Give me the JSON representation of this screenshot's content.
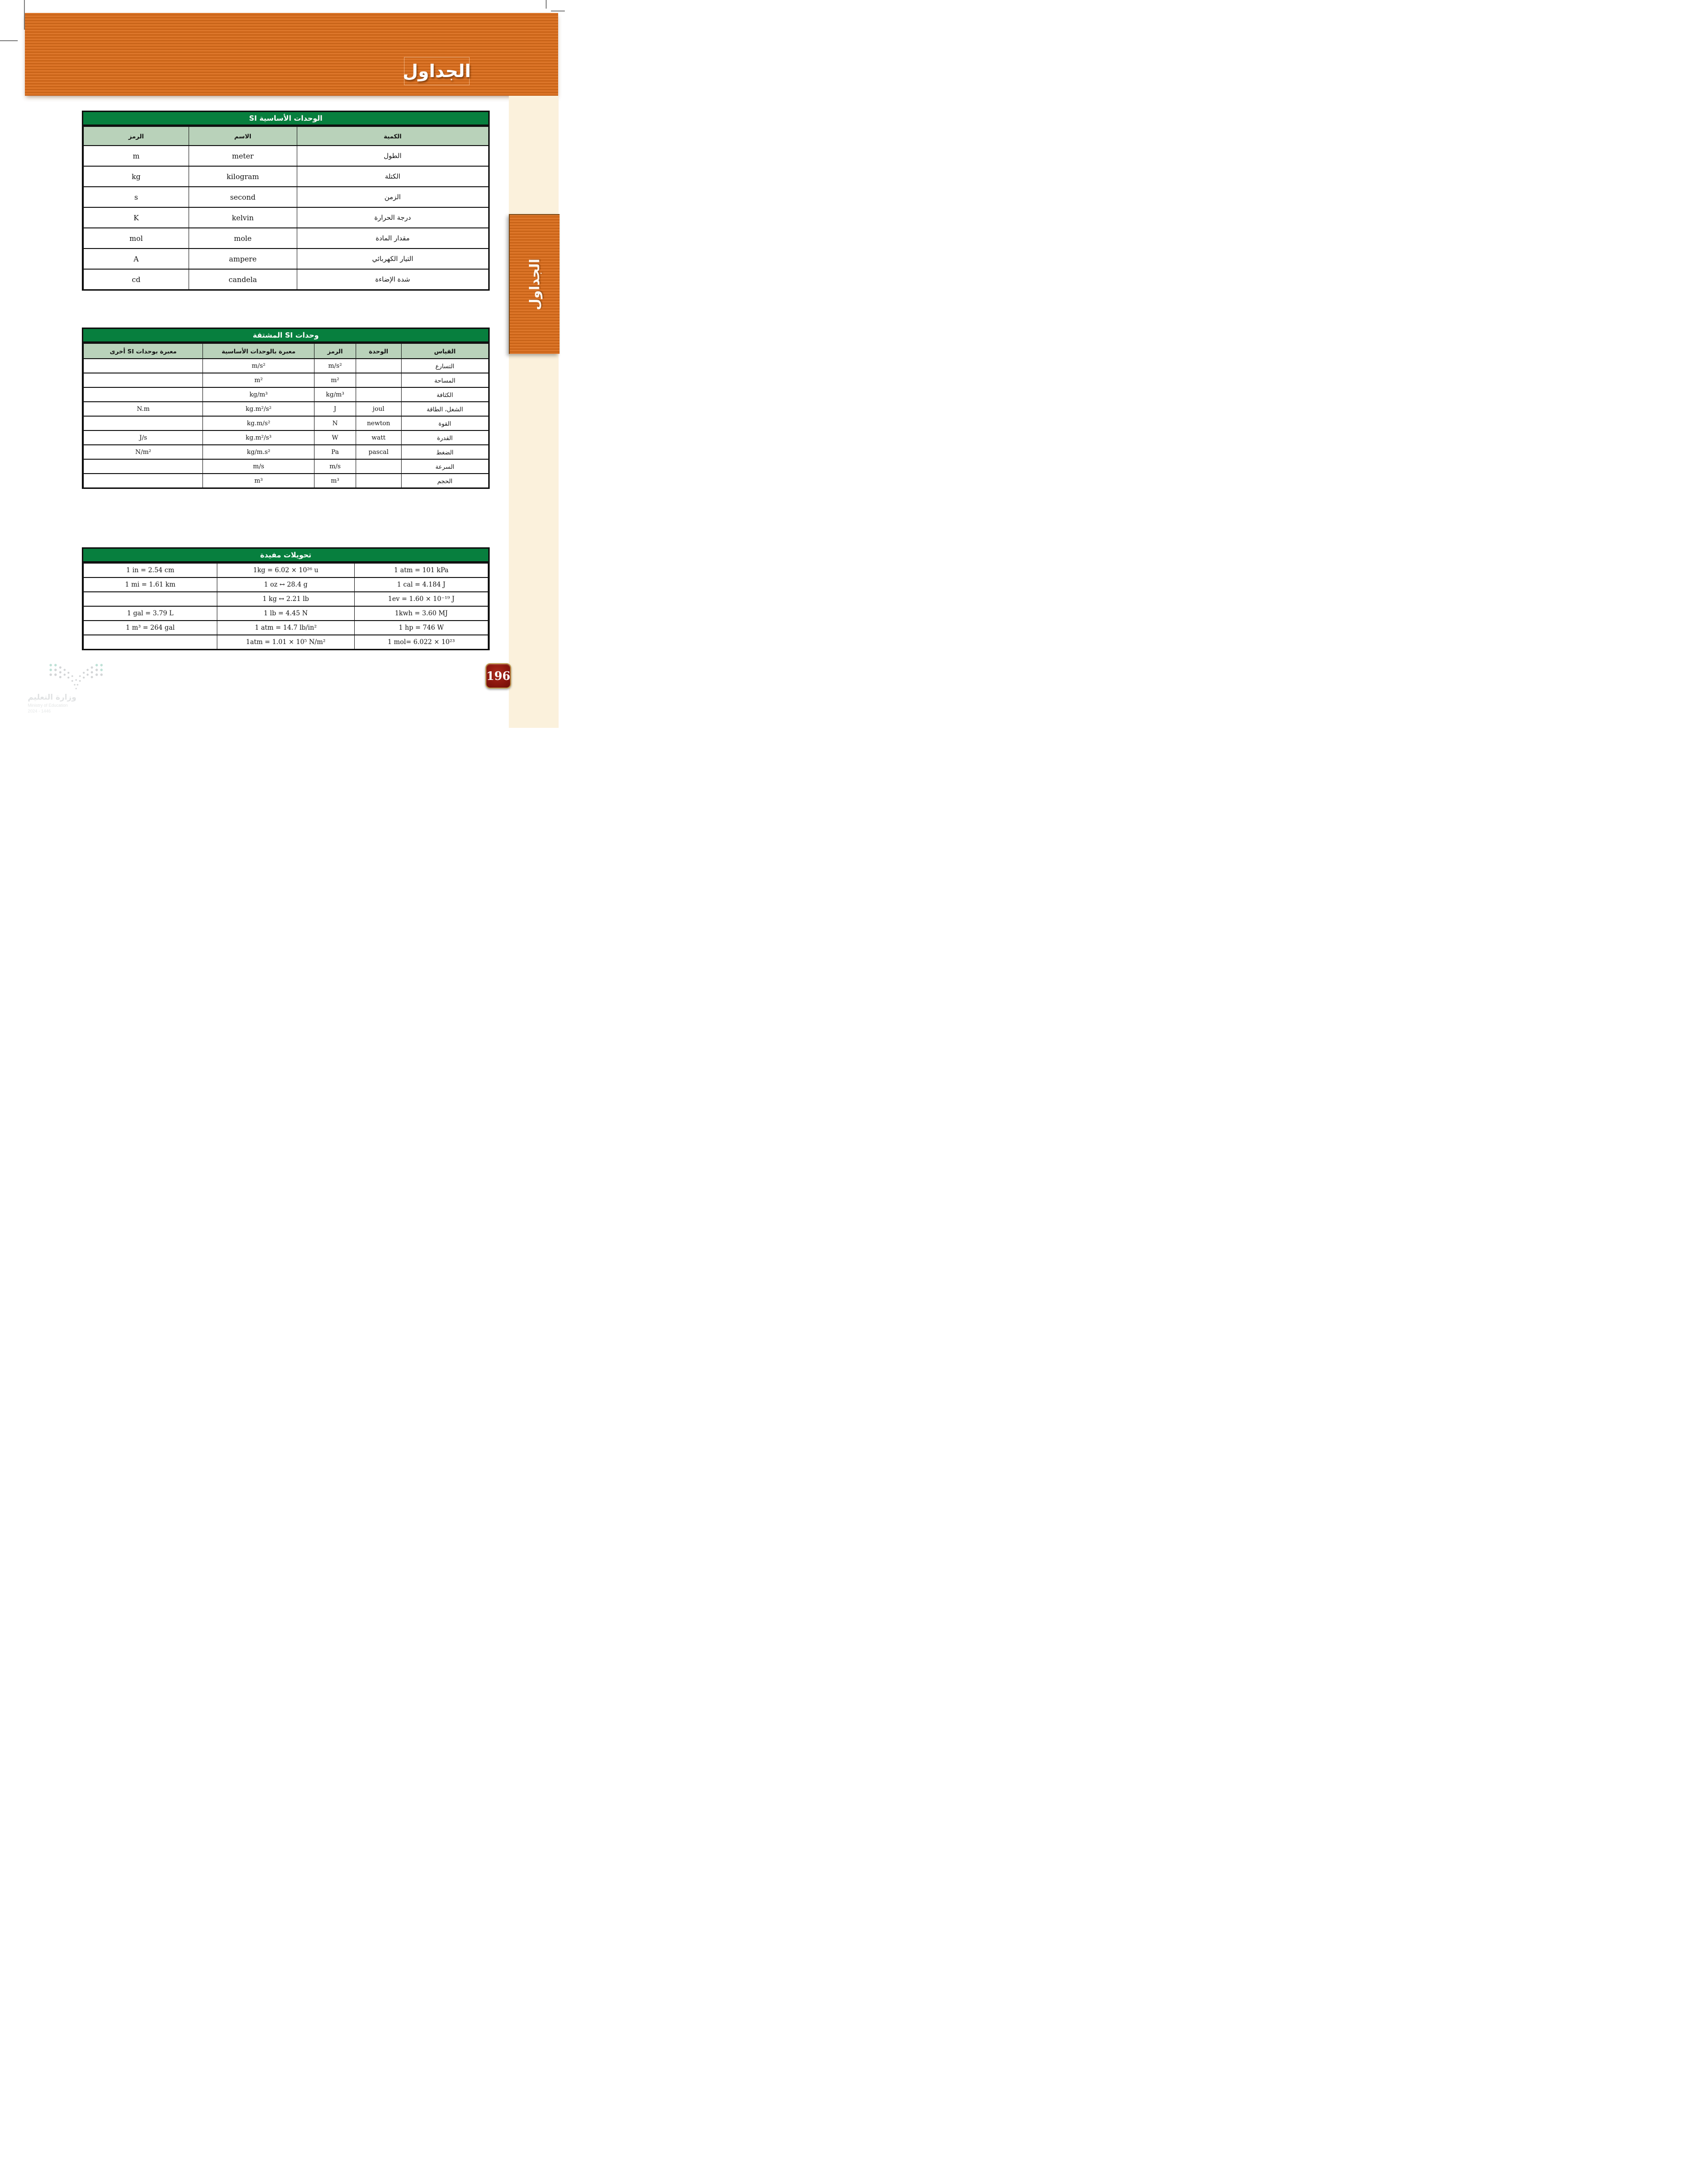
{
  "banner": {
    "title": "الجداول"
  },
  "sidebar": {
    "tab_label": "الجداول"
  },
  "page": {
    "number": "196"
  },
  "tables": {
    "si_base": {
      "title": "الوحدات الأساسية SI",
      "headers": {
        "quantity": "الكمية",
        "name": "الاسم",
        "symbol": "الرمز"
      },
      "rows": [
        {
          "quantity": "الطول",
          "name": "meter",
          "symbol": "m"
        },
        {
          "quantity": "الكتلة",
          "name": "kilogram",
          "symbol": "kg"
        },
        {
          "quantity": "الزمن",
          "name": "second",
          "symbol": "s"
        },
        {
          "quantity": "درجة الحرارة",
          "name": "kelvin",
          "symbol": "K"
        },
        {
          "quantity": "مقدار المادة",
          "name": "mole",
          "symbol": "mol"
        },
        {
          "quantity": "التيار الكهربائي",
          "name": "ampere",
          "symbol": "A"
        },
        {
          "quantity": "شدة الإضاءة",
          "name": "candela",
          "symbol": "cd"
        }
      ]
    },
    "si_derived": {
      "title": "وحدات SI المشتقة",
      "headers": {
        "measure": "القياس",
        "unit": "الوحدة",
        "symbol": "الرمز",
        "base": "معبرة بالوحدات الأساسية",
        "other": "معبرة بوحدات SI أخرى"
      },
      "rows": [
        {
          "measure": "التسارع",
          "unit": "",
          "symbol": "m/s²",
          "base": "m/s²",
          "other": ""
        },
        {
          "measure": "المساحة",
          "unit": "",
          "symbol": "m²",
          "base": "m²",
          "other": ""
        },
        {
          "measure": "الكثافة",
          "unit": "",
          "symbol": "kg/m³",
          "base": "kg/m³",
          "other": ""
        },
        {
          "measure": "الشغل، الطاقة",
          "unit": "joul",
          "symbol": "J",
          "base": "kg.m²/s²",
          "other": "N.m"
        },
        {
          "measure": "القوة",
          "unit": "newton",
          "symbol": "N",
          "base": "kg.m/s²",
          "other": ""
        },
        {
          "measure": "القدرة",
          "unit": "watt",
          "symbol": "W",
          "base": "kg.m²/s³",
          "other": "J/s"
        },
        {
          "measure": "الضغط",
          "unit": "pascal",
          "symbol": "Pa",
          "base": "kg/m.s²",
          "other": "N/m²"
        },
        {
          "measure": "السرعة",
          "unit": "",
          "symbol": "m/s",
          "base": "m/s",
          "other": ""
        },
        {
          "measure": "الحجم",
          "unit": "",
          "symbol": "m³",
          "base": "m³",
          "other": ""
        }
      ]
    },
    "conversions": {
      "title": "تحويلات مفيدة",
      "rows": [
        [
          "1 in = 2.54 cm",
          "1kg = 6.02 × 10²⁶ u",
          "1 atm = 101 kPa"
        ],
        [
          "1 mi = 1.61 km",
          "1 oz ↔ 28.4 g",
          "1 cal = 4.184 J"
        ],
        [
          "",
          "1 kg ↔ 2.21 lb",
          "1ev = 1.60 × 10⁻¹⁹ J"
        ],
        [
          "1 gal = 3.79 L",
          "1 lb = 4.45 N",
          "1kwh = 3.60 MJ"
        ],
        [
          "1 m³ = 264 gal",
          "1 atm = 14.7 lb/in²",
          "1 hp = 746 W"
        ],
        [
          "",
          "1atm = 1.01 × 10⁵ N/m²",
          "1 mol= 6.022 × 10²³"
        ]
      ]
    }
  },
  "watermark": {
    "line1": "وزارة التعليم",
    "line2": "Ministry of Education",
    "line3": "2024 - 1446"
  },
  "colors": {
    "banner_orange": "#d96d1c",
    "table_title_green": "#077f3e",
    "table_header_green": "#b9d2ba",
    "sidebar_cream": "#fbf1dc",
    "badge_red": "#8c170e",
    "badge_gold_border": "#bf9a4e"
  }
}
